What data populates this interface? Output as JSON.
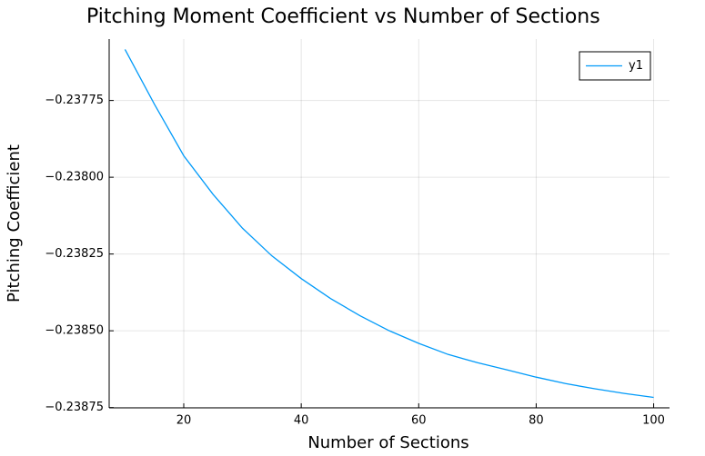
{
  "chart_data": {
    "type": "line",
    "title": "Pitching Moment Coefficient vs Number of Sections",
    "x_label": "Number of Sections",
    "y_label": "Pitching Coefficient",
    "x": [
      10,
      15,
      20,
      25,
      30,
      35,
      40,
      45,
      50,
      55,
      60,
      65,
      70,
      75,
      80,
      85,
      90,
      95,
      100
    ],
    "series": [
      {
        "name": "y1",
        "color": "#009af9",
        "values": [
          -0.237584,
          -0.237762,
          -0.23793,
          -0.238056,
          -0.238166,
          -0.238256,
          -0.23833,
          -0.238395,
          -0.238451,
          -0.2385,
          -0.238541,
          -0.238577,
          -0.238604,
          -0.238627,
          -0.238651,
          -0.238672,
          -0.238689,
          -0.238704,
          -0.238717
        ]
      }
    ],
    "xlim": [
      7.3,
      102.7
    ],
    "ylim": [
      -0.238751,
      -0.23755
    ],
    "xticks": [
      20,
      40,
      60,
      80,
      100
    ],
    "yticks": [
      {
        "value": -0.23775,
        "label": "−0.23775"
      },
      {
        "value": -0.238,
        "label": "−0.23800"
      },
      {
        "value": -0.23825,
        "label": "−0.23825"
      },
      {
        "value": -0.2385,
        "label": "−0.23850"
      },
      {
        "value": -0.23875,
        "label": "−0.23875"
      }
    ],
    "grid": true,
    "legend_position": "top-right"
  }
}
